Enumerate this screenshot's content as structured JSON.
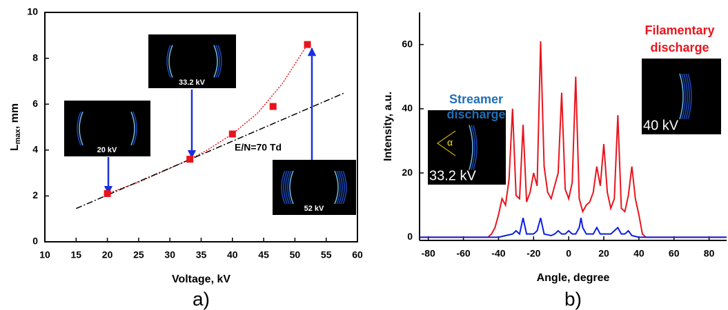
{
  "chart_data": [
    {
      "type": "scatter",
      "panel_label": "a)",
      "x_label": "Voltage, kV",
      "y_label": {
        "main": "L",
        "sub": "max",
        "rest": ", mm"
      },
      "xlim": [
        10,
        60
      ],
      "xticks": [
        10,
        15,
        20,
        25,
        30,
        35,
        40,
        45,
        50,
        55,
        60
      ],
      "ylim": [
        0,
        10
      ],
      "yticks": [
        0,
        2,
        4,
        6,
        8,
        10
      ],
      "series": [
        {
          "type": "scatter",
          "color": "#e8141c",
          "x": [
            20,
            33.2,
            40,
            46.5,
            52
          ],
          "values": [
            2.1,
            3.6,
            4.7,
            5.9,
            8.6
          ]
        },
        {
          "type": "line",
          "style": "dotted",
          "color": "#e8141c",
          "x": [
            20,
            25,
            30,
            33.2,
            36,
            40,
            44,
            48,
            52
          ],
          "values": [
            2.1,
            2.6,
            3.2,
            3.6,
            4.0,
            4.7,
            5.6,
            6.9,
            8.6
          ]
        },
        {
          "type": "line",
          "style": "dash-dot",
          "color": "#000000",
          "x": [
            15,
            58
          ],
          "values": [
            1.45,
            6.5
          ]
        }
      ],
      "annotation": "E/N=70 Td",
      "insets": [
        "20 kV",
        "33.2 kV",
        "52 kV"
      ]
    },
    {
      "type": "line",
      "panel_label": "b)",
      "x_label": "Angle, degree",
      "y_label": "Intensity, a.u.",
      "xlim": [
        -85,
        90
      ],
      "xticks": [
        -80,
        -60,
        -40,
        -20,
        0,
        20,
        40,
        60,
        80
      ],
      "ylim": [
        -1,
        70
      ],
      "yticks": [
        0,
        20,
        40,
        60
      ],
      "series": [
        {
          "type": "line",
          "color": "#e8141c",
          "x": [
            -90,
            -46,
            -44,
            -42,
            -40,
            -38,
            -36,
            -34,
            -32,
            -30,
            -28,
            -26,
            -24,
            -22,
            -20,
            -18,
            -16,
            -14,
            -12,
            -10,
            -8,
            -6,
            -4,
            -2,
            0,
            2,
            4,
            6,
            8,
            10,
            12,
            14,
            16,
            18,
            20,
            22,
            24,
            26,
            28,
            30,
            32,
            34,
            36,
            38,
            40,
            42,
            44,
            90
          ],
          "values": [
            0,
            0,
            1,
            3,
            7,
            12,
            10,
            18,
            40,
            13,
            12,
            35,
            11,
            14,
            20,
            16,
            61,
            22,
            14,
            12,
            16,
            20,
            45,
            15,
            12,
            17,
            50,
            12,
            8,
            10,
            11,
            14,
            22,
            16,
            29,
            14,
            9,
            12,
            38,
            9,
            8,
            13,
            22,
            12,
            7,
            1,
            0,
            0
          ]
        },
        {
          "type": "line",
          "color": "#0a1ee0",
          "x": [
            -90,
            -40,
            -36,
            -32,
            -30,
            -28,
            -26,
            -24,
            -20,
            -18,
            -16,
            -14,
            -10,
            -8,
            -6,
            -4,
            -2,
            0,
            2,
            4,
            6,
            7,
            8,
            10,
            12,
            14,
            16,
            18,
            20,
            24,
            26,
            28,
            30,
            32,
            34,
            36,
            40,
            90
          ],
          "values": [
            0,
            0,
            0.5,
            1,
            2,
            1,
            6,
            1,
            1,
            2,
            6,
            1,
            0.5,
            1,
            2,
            1,
            1,
            2,
            1,
            1,
            3,
            6,
            3,
            1,
            1,
            1,
            3,
            1,
            1,
            1,
            2,
            3,
            1,
            1,
            2,
            0.5,
            0,
            0
          ]
        }
      ],
      "streamer_label": [
        "Streamer",
        "discharge"
      ],
      "filamentary_label": [
        "Filamentary",
        "discharge"
      ],
      "insets": [
        "33.2 kV",
        "40 kV"
      ],
      "angle_symbol": "α"
    }
  ]
}
